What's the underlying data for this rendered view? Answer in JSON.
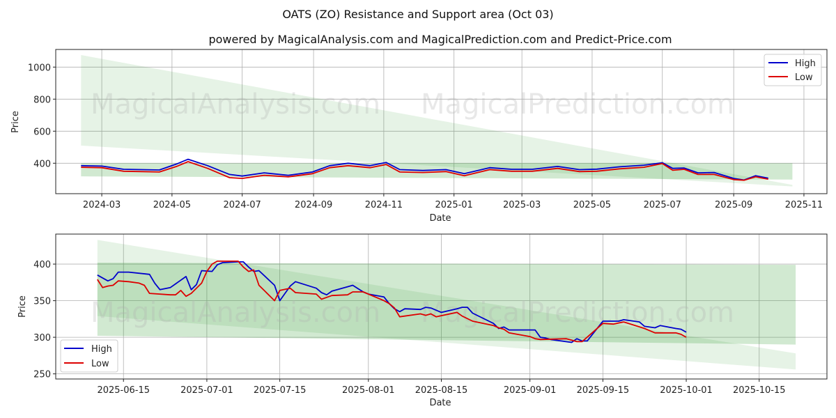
{
  "title": "OATS (ZO) Resistance and Support area (Oct 03)",
  "subtitle": "powered by MagicalAnalysis.com and MagicalPrediction.com and Predict-Price.com",
  "watermarks": [
    "MagicalAnalysis.com",
    "MagicalPrediction.com"
  ],
  "colors": {
    "high": "#0000cc",
    "low": "#dd0000",
    "band": "#2e9b2e"
  },
  "chart_data": [
    {
      "type": "line",
      "xlabel": "Date",
      "ylabel": "Price",
      "ylim": [
        210,
        1110
      ],
      "yticks": [
        400,
        600,
        800,
        1000
      ],
      "x_range": [
        "2024-01-21",
        "2025-11-21"
      ],
      "xticks": [
        "2024-03",
        "2024-05",
        "2024-07",
        "2024-09",
        "2024-11",
        "2025-01",
        "2025-03",
        "2025-05",
        "2025-07",
        "2025-09",
        "2025-11"
      ],
      "grid": true,
      "legend": {
        "position": "top-right",
        "entries": [
          "High",
          "Low"
        ]
      },
      "bands": [
        {
          "name": "resistance",
          "x": [
            "2024-02-12",
            "2025-10-22"
          ],
          "upper": [
            1075,
            265
          ],
          "lower": [
            510,
            255
          ]
        },
        {
          "name": "support",
          "x": [
            "2024-02-12",
            "2025-10-22"
          ],
          "upper": [
            400,
            400
          ],
          "lower": [
            318,
            298
          ]
        }
      ],
      "series": [
        {
          "name": "High",
          "x": [
            "2024-02-12",
            "2024-03-01",
            "2024-03-20",
            "2024-04-05",
            "2024-04-20",
            "2024-05-05",
            "2024-05-15",
            "2024-06-01",
            "2024-06-20",
            "2024-07-01",
            "2024-07-20",
            "2024-08-10",
            "2024-08-31",
            "2024-09-15",
            "2024-10-01",
            "2024-10-20",
            "2024-11-03",
            "2024-11-15",
            "2024-12-05",
            "2024-12-25",
            "2025-01-10",
            "2025-02-01",
            "2025-02-20",
            "2025-03-10",
            "2025-04-01",
            "2025-04-20",
            "2025-05-05",
            "2025-05-25",
            "2025-06-15",
            "2025-07-01",
            "2025-07-10",
            "2025-07-20",
            "2025-08-01",
            "2025-08-15",
            "2025-09-01",
            "2025-09-10",
            "2025-09-20",
            "2025-10-01"
          ],
          "values": [
            385,
            382,
            362,
            360,
            358,
            395,
            425,
            385,
            330,
            320,
            340,
            325,
            345,
            385,
            400,
            385,
            405,
            360,
            355,
            360,
            335,
            372,
            362,
            362,
            380,
            360,
            363,
            378,
            388,
            403,
            368,
            370,
            340,
            342,
            305,
            295,
            322,
            307
          ]
        },
        {
          "name": "Low",
          "x": [
            "2024-02-12",
            "2024-03-01",
            "2024-03-20",
            "2024-04-05",
            "2024-04-20",
            "2024-05-05",
            "2024-05-15",
            "2024-06-01",
            "2024-06-20",
            "2024-07-01",
            "2024-07-20",
            "2024-08-10",
            "2024-08-31",
            "2024-09-15",
            "2024-10-01",
            "2024-10-20",
            "2024-11-03",
            "2024-11-15",
            "2024-12-05",
            "2024-12-25",
            "2025-01-10",
            "2025-02-01",
            "2025-02-20",
            "2025-03-10",
            "2025-04-01",
            "2025-04-20",
            "2025-05-05",
            "2025-05-25",
            "2025-06-15",
            "2025-07-01",
            "2025-07-10",
            "2025-07-20",
            "2025-08-01",
            "2025-08-15",
            "2025-09-01",
            "2025-09-10",
            "2025-09-20",
            "2025-10-01"
          ],
          "values": [
            375,
            372,
            350,
            348,
            345,
            380,
            410,
            368,
            310,
            305,
            325,
            315,
            335,
            372,
            385,
            372,
            392,
            345,
            342,
            348,
            322,
            360,
            350,
            350,
            368,
            348,
            350,
            365,
            375,
            398,
            356,
            362,
            330,
            330,
            298,
            294,
            315,
            300
          ]
        }
      ]
    },
    {
      "type": "line",
      "xlabel": "Date",
      "ylabel": "Price",
      "ylim": [
        243,
        441
      ],
      "yticks": [
        250,
        300,
        350,
        400
      ],
      "x_range": [
        "2025-06-02",
        "2025-10-28"
      ],
      "xticks": [
        "2025-06-15",
        "2025-07-01",
        "2025-07-15",
        "2025-08-01",
        "2025-08-15",
        "2025-09-01",
        "2025-09-15",
        "2025-10-01",
        "2025-10-15"
      ],
      "grid": true,
      "legend": {
        "position": "bottom-left",
        "entries": [
          "High",
          "Low"
        ]
      },
      "bands": [
        {
          "name": "resistance",
          "x": [
            "2025-06-10",
            "2025-10-22"
          ],
          "upper": [
            433,
            278
          ],
          "lower": [
            329,
            256
          ]
        },
        {
          "name": "support",
          "x": [
            "2025-06-10",
            "2025-10-22"
          ],
          "upper": [
            402,
            399
          ],
          "lower": [
            302,
            290
          ]
        }
      ],
      "series": [
        {
          "name": "High",
          "x": [
            "2025-06-10",
            "2025-06-12",
            "2025-06-13",
            "2025-06-14",
            "2025-06-16",
            "2025-06-20",
            "2025-06-21",
            "2025-06-22",
            "2025-06-24",
            "2025-06-27",
            "2025-06-28",
            "2025-06-29",
            "2025-06-30",
            "2025-07-02",
            "2025-07-03",
            "2025-07-04",
            "2025-07-07",
            "2025-07-08",
            "2025-07-09",
            "2025-07-10",
            "2025-07-11",
            "2025-07-14",
            "2025-07-15",
            "2025-07-17",
            "2025-07-18",
            "2025-07-22",
            "2025-07-23",
            "2025-07-24",
            "2025-07-25",
            "2025-07-28",
            "2025-07-29",
            "2025-07-31",
            "2025-08-01",
            "2025-08-04",
            "2025-08-05",
            "2025-08-06",
            "2025-08-07",
            "2025-08-08",
            "2025-08-11",
            "2025-08-12",
            "2025-08-13",
            "2025-08-15",
            "2025-08-18",
            "2025-08-19",
            "2025-08-20",
            "2025-08-21",
            "2025-08-25",
            "2025-08-26",
            "2025-08-27",
            "2025-08-28",
            "2025-09-02",
            "2025-09-03",
            "2025-09-04",
            "2025-09-05",
            "2025-09-09",
            "2025-09-10",
            "2025-09-11",
            "2025-09-12",
            "2025-09-15",
            "2025-09-18",
            "2025-09-19",
            "2025-09-22",
            "2025-09-23",
            "2025-09-25",
            "2025-09-26",
            "2025-09-29",
            "2025-09-30",
            "2025-10-01"
          ],
          "values": [
            385,
            377,
            380,
            389,
            389,
            386,
            374,
            365,
            368,
            383,
            365,
            372,
            391,
            390,
            399,
            402,
            403,
            403,
            396,
            390,
            391,
            371,
            350,
            370,
            376,
            367,
            361,
            358,
            363,
            369,
            371,
            362,
            359,
            355,
            346,
            339,
            335,
            339,
            338,
            341,
            340,
            334,
            339,
            341,
            341,
            333,
            319,
            312,
            314,
            310,
            310,
            300,
            299,
            297,
            293,
            298,
            295,
            295,
            322,
            322,
            324,
            321,
            315,
            313,
            316,
            312,
            311,
            307
          ]
        },
        {
          "name": "Low",
          "x": [
            "2025-06-10",
            "2025-06-11",
            "2025-06-12",
            "2025-06-13",
            "2025-06-14",
            "2025-06-16",
            "2025-06-18",
            "2025-06-19",
            "2025-06-20",
            "2025-06-24",
            "2025-06-25",
            "2025-06-26",
            "2025-06-27",
            "2025-06-28",
            "2025-06-30",
            "2025-07-01",
            "2025-07-02",
            "2025-07-03",
            "2025-07-07",
            "2025-07-08",
            "2025-07-09",
            "2025-07-10",
            "2025-07-11",
            "2025-07-14",
            "2025-07-15",
            "2025-07-17",
            "2025-07-18",
            "2025-07-22",
            "2025-07-23",
            "2025-07-25",
            "2025-07-28",
            "2025-07-29",
            "2025-07-31",
            "2025-08-04",
            "2025-08-05",
            "2025-08-06",
            "2025-08-07",
            "2025-08-11",
            "2025-08-12",
            "2025-08-13",
            "2025-08-14",
            "2025-08-18",
            "2025-08-19",
            "2025-08-21",
            "2025-08-25",
            "2025-08-26",
            "2025-08-27",
            "2025-08-28",
            "2025-09-01",
            "2025-09-02",
            "2025-09-03",
            "2025-09-08",
            "2025-09-09",
            "2025-09-10",
            "2025-09-11",
            "2025-09-15",
            "2025-09-17",
            "2025-09-19",
            "2025-09-23",
            "2025-09-24",
            "2025-09-25",
            "2025-09-29",
            "2025-09-30",
            "2025-10-01"
          ],
          "values": [
            379,
            368,
            370,
            371,
            377,
            376,
            374,
            371,
            360,
            358,
            358,
            364,
            356,
            360,
            374,
            390,
            400,
            404,
            404,
            396,
            390,
            392,
            371,
            350,
            364,
            367,
            361,
            359,
            352,
            357,
            358,
            362,
            362,
            350,
            346,
            340,
            328,
            332,
            330,
            332,
            328,
            334,
            329,
            322,
            316,
            313,
            311,
            306,
            301,
            298,
            297,
            298,
            296,
            294,
            294,
            319,
            318,
            321,
            312,
            309,
            306,
            306,
            304,
            300
          ]
        }
      ]
    }
  ]
}
